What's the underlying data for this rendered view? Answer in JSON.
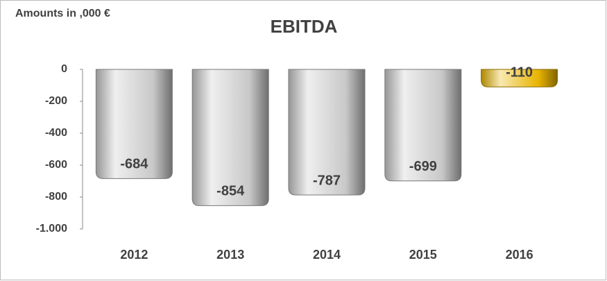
{
  "chart_data": {
    "type": "bar",
    "title": "EBITDA",
    "subtitle": "Amounts in ,000 €",
    "categories": [
      "2012",
      "2013",
      "2014",
      "2015",
      "2016"
    ],
    "values": [
      -684,
      -854,
      -787,
      -699,
      -110
    ],
    "colors": [
      "#c8c8c8",
      "#c8c8c8",
      "#c8c8c8",
      "#c8c8c8",
      "#e8b400"
    ],
    "ylim": [
      -1000,
      0
    ],
    "yticks": [
      0,
      -200,
      -400,
      -600,
      -800,
      {
        "value": -1000,
        "label": "-1.000"
      }
    ],
    "grid": false
  }
}
